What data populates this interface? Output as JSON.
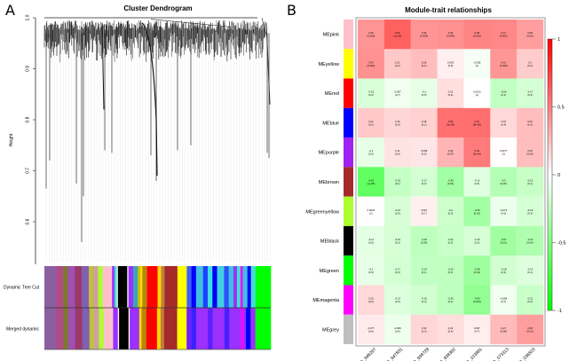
{
  "panels": {
    "a": {
      "letter": "A",
      "title": "Cluster Dendrogram",
      "ylabel": "Height",
      "yticks": [
        "1.0",
        "0.9",
        "0.8",
        "0.7",
        "0.6"
      ],
      "bar_labels": [
        "Dynamic Tree Cut",
        "Merged dynamic"
      ]
    },
    "b": {
      "letter": "B",
      "title": "Module-trait relationships"
    }
  },
  "chart_data": [
    {
      "type": "dendrogram",
      "title": "Cluster Dendrogram",
      "xlabel": "",
      "ylabel": "Height",
      "ylim": [
        0.52,
        1.0
      ],
      "yticks": [
        1.0,
        0.9,
        0.8,
        0.7,
        0.6
      ],
      "color_rows": [
        {
          "name": "Dynamic Tree Cut",
          "segments": [
            [
              "#8a5fa0",
              0.05
            ],
            [
              "#b04a8a",
              0.03
            ],
            [
              "#7a7a2a",
              0.02
            ],
            [
              "#a050b0",
              0.03
            ],
            [
              "#9a3a6a",
              0.03
            ],
            [
              "#8060b0",
              0.03
            ],
            [
              "#c0c040",
              0.02
            ],
            [
              "#d0a0a0",
              0.02
            ],
            [
              "#adff2f",
              0.02
            ],
            [
              "#ffc0cb",
              0.04
            ],
            [
              "#9b30ff",
              0.01
            ],
            [
              "#40e0d0",
              0.01
            ],
            [
              "#ffffff",
              0.005
            ],
            [
              "#000000",
              0.04
            ],
            [
              "#ffffff",
              0.005
            ],
            [
              "#9b30ff",
              0.02
            ],
            [
              "#40a0c0",
              0.02
            ],
            [
              "#c0c000",
              0.01
            ],
            [
              "#ffd700",
              0.01
            ],
            [
              "#b8860b",
              0.02
            ],
            [
              "#ff0000",
              0.045
            ],
            [
              "#ffd700",
              0.015
            ],
            [
              "#c08040",
              0.015
            ],
            [
              "#a52a2a",
              0.055
            ],
            [
              "#ffff00",
              0.04
            ],
            [
              "#4060ff",
              0.02
            ],
            [
              "#0000ff",
              0.02
            ],
            [
              "#40c0e0",
              0.03
            ],
            [
              "#2040ff",
              0.02
            ],
            [
              "#40e0e0",
              0.02
            ],
            [
              "#0000ff",
              0.02
            ],
            [
              "#40d0e0",
              0.03
            ],
            [
              "#3050ff",
              0.02
            ],
            [
              "#40c0e0",
              0.02
            ],
            [
              "#9b30ff",
              0.015
            ],
            [
              "#40e0d0",
              0.015
            ],
            [
              "#ff00ff",
              0.01
            ],
            [
              "#40c0e0",
              0.02
            ],
            [
              "#0000ff",
              0.015
            ],
            [
              "#40e0d0",
              0.02
            ],
            [
              "#00ff00",
              0.065
            ]
          ]
        },
        {
          "name": "Merged dynamic",
          "segments": [
            [
              "#8a5fa0",
              0.05
            ],
            [
              "#b04a8a",
              0.03
            ],
            [
              "#7a7a2a",
              0.02
            ],
            [
              "#a050b0",
              0.03
            ],
            [
              "#9a3a6a",
              0.03
            ],
            [
              "#8060b0",
              0.03
            ],
            [
              "#c0c040",
              0.02
            ],
            [
              "#d0a0a0",
              0.02
            ],
            [
              "#adff2f",
              0.02
            ],
            [
              "#ffc0cb",
              0.04
            ],
            [
              "#9b30ff",
              0.02
            ],
            [
              "#ffffff",
              0.005
            ],
            [
              "#000000",
              0.04
            ],
            [
              "#ffffff",
              0.005
            ],
            [
              "#9b30ff",
              0.04
            ],
            [
              "#ffd700",
              0.01
            ],
            [
              "#b8860b",
              0.02
            ],
            [
              "#ff0000",
              0.045
            ],
            [
              "#ffd700",
              0.015
            ],
            [
              "#c08040",
              0.015
            ],
            [
              "#a52a2a",
              0.055
            ],
            [
              "#ffff00",
              0.04
            ],
            [
              "#7020ff",
              0.02
            ],
            [
              "#3a20ff",
              0.02
            ],
            [
              "#9b30ff",
              0.05
            ],
            [
              "#5a20ff",
              0.02
            ],
            [
              "#9b30ff",
              0.05
            ],
            [
              "#4a20ff",
              0.02
            ],
            [
              "#9b30ff",
              0.05
            ],
            [
              "#ff00ff",
              0.01
            ],
            [
              "#9b30ff",
              0.01
            ],
            [
              "#0000ff",
              0.02
            ],
            [
              "#9b30ff",
              0.02
            ],
            [
              "#00ff00",
              0.065
            ]
          ]
        }
      ]
    },
    {
      "type": "heatmap",
      "title": "Module-trait relationships",
      "rows": [
        "MEpink",
        "MEyellow",
        "MEred",
        "MEblue",
        "MEpurple",
        "MEbrown",
        "MEgreenyellow",
        "MEblack",
        "MEgreen",
        "MEmagenta",
        "MEgrey"
      ],
      "row_colors": [
        "#ffc0cb",
        "#ffff00",
        "#ff0000",
        "#0000ff",
        "#a020f0",
        "#a52a2a",
        "#adff2f",
        "#000000",
        "#00ff00",
        "#ff00ff",
        "#bebebe"
      ],
      "columns": [
        "XR_946297",
        "XR_947831",
        "XR_938728",
        "XR_938392",
        "NR_103881",
        "NR_073113",
        "NR_036503"
      ],
      "values": [
        [
          0.42,
          0.62,
          0.42,
          0.43,
          0.48,
          0.47,
          0.38
        ],
        [
          0.43,
          0.21,
          0.26,
          0.063,
          -0.038,
          0.41,
          0.2
        ],
        [
          -0.15,
          -0.057,
          -0.1,
          0.13,
          0.0013,
          -0.24,
          -0.17
        ],
        [
          0.21,
          0.16,
          0.18,
          0.56,
          0.57,
          0.15,
          0.26
        ],
        [
          -0.1,
          0.11,
          0.098,
          0.29,
          0.52,
          0.0077,
          0.26
        ],
        [
          -0.62,
          -0.23,
          -0.17,
          -0.36,
          -0.12,
          -0.3,
          -0.22
        ],
        [
          0.0023,
          -0.16,
          0.061,
          -0.2,
          -0.36,
          -0.073,
          -0.16
        ],
        [
          -0.11,
          -0.16,
          -0.26,
          -0.21,
          -0.16,
          -0.37,
          -0.31
        ],
        [
          -0.1,
          -0.17,
          -0.24,
          -0.25,
          -0.38,
          -0.18,
          -0.13
        ],
        [
          0.15,
          -0.13,
          -0.18,
          -0.25,
          -0.43,
          -0.058,
          -0.21
        ],
        [
          0.077,
          -0.069,
          0.16,
          0.13,
          0.067,
          0.27,
          0.38
        ]
      ],
      "pvalues": [
        [
          "(0.005)",
          "(1e-05)",
          "(0.005)",
          "(0.004)",
          "(0.002)",
          "(0.001)",
          "(0.02)"
        ],
        [
          "(0.004)",
          "(0.2)",
          "(0.1)",
          "(0.6)",
          "(1)",
          "(0.008)",
          "(0.2)"
        ],
        [
          "(0.3)",
          "(0.7)",
          "(0.5)",
          "(0.4)",
          "(1)",
          "(0.1)",
          "(0.3)"
        ],
        [
          "(0.2)",
          "(0.3)",
          "(0.2)",
          "(3e-05)",
          "(8e-05)",
          "(0.4)",
          "(0.1)"
        ],
        [
          "(0.5)",
          "(0.5)",
          "(0.5)",
          "(0.07)",
          "(3e-04)",
          "(1)",
          "(0.09)"
        ],
        [
          "(1e-05)",
          "(0.1)",
          "(0.3)",
          "(0.02)",
          "(0.5)",
          "(0.05)",
          "(0.2)"
        ],
        [
          "(1)",
          "(0.3)",
          "(0.7)",
          "(0.2)",
          "(0.01)",
          "(0.6)",
          "(0.3)"
        ],
        [
          "(0.5)",
          "(0.3)",
          "(0.09)",
          "(0.2)",
          "(0.3)",
          "(0.01)",
          "(0.04)"
        ],
        [
          "(0.5)",
          "(0.3)",
          "(0.1)",
          "(0.1)",
          "(0.01)",
          "(0.3)",
          "(0.4)"
        ],
        [
          "(0.3)",
          "(0.4)",
          "(0.3)",
          "(0.1)",
          "(0.004)",
          "(0.7)",
          "(0.2)"
        ],
        [
          "(0.6)",
          "(0.6)",
          "(0.3)",
          "(0.4)",
          "(0.7)",
          "(0.08)",
          "(0.01)"
        ]
      ],
      "color_scale": {
        "min": -1,
        "max": 1,
        "low_color": "#00ff00",
        "mid_color": "#ffffff",
        "high_color": "#ff0000",
        "ticks": [
          "1",
          "0.5",
          "0",
          "-0.5",
          "-1"
        ],
        "placement": "right"
      }
    }
  ]
}
